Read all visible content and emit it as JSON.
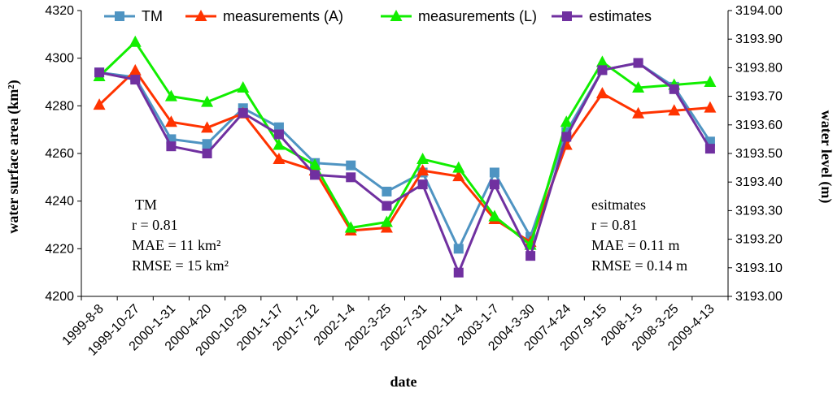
{
  "chart_data": {
    "type": "line",
    "categories": [
      "1999-8-8",
      "1999-10-27",
      "2000-1-31",
      "2000-4-20",
      "2000-10-29",
      "2001-1-17",
      "2001-7-12",
      "2002-1-4",
      "2002-3-25",
      "2002-7-31",
      "2002-11-4",
      "2003-1-7",
      "2004-3-30",
      "2007-4-24",
      "2007-9-15",
      "2008-1-5",
      "2008-3-25",
      "2009-4-13"
    ],
    "series": [
      {
        "name": "TM",
        "axis": "left",
        "color": "#4f94c2",
        "marker": "square",
        "values": [
          4294,
          4292,
          4266,
          4264,
          4279,
          4271,
          4256,
          4255,
          4244,
          4252,
          4220,
          4252,
          4225,
          4269,
          4295,
          4298,
          4288,
          4265
        ]
      },
      {
        "name": "measurements (A)",
        "axis": "right",
        "color": "#ff3300",
        "marker": "triangle",
        "values": [
          3193.67,
          3193.79,
          3193.61,
          3193.59,
          3193.64,
          3193.48,
          3193.44,
          3193.23,
          3193.24,
          3193.44,
          3193.42,
          3193.27,
          3193.19,
          3193.53,
          3193.71,
          3193.64,
          3193.65,
          3193.66
        ]
      },
      {
        "name": "measurements (L)",
        "axis": "right",
        "color": "#11ee00",
        "marker": "triangle",
        "values": [
          3193.77,
          3193.89,
          3193.7,
          3193.68,
          3193.73,
          3193.53,
          3193.46,
          3193.24,
          3193.26,
          3193.48,
          3193.45,
          3193.28,
          3193.18,
          3193.61,
          3193.82,
          3193.73,
          3193.74,
          3193.75
        ]
      },
      {
        "name": "estimates",
        "axis": "left",
        "color": "#7030a0",
        "marker": "square",
        "values": [
          4294,
          4291,
          4263,
          4260,
          4277,
          4268,
          4251,
          4250,
          4238,
          4247,
          4210,
          4247,
          4217,
          4267,
          4295,
          4298,
          4287,
          4262
        ]
      }
    ],
    "left_axis": {
      "label": "water surface area (km²)",
      "ylim": [
        4200,
        4320
      ],
      "ticks": [
        "4200",
        "4220",
        "4240",
        "4260",
        "4280",
        "4300",
        "4320"
      ]
    },
    "right_axis": {
      "label": "water level (m)",
      "ylim": [
        3193.0,
        3194.0
      ],
      "ticks": [
        "3193.00",
        "3193.10",
        "3193.20",
        "3193.30",
        "3193.40",
        "3193.50",
        "3193.60",
        "3193.70",
        "3193.80",
        "3193.90",
        "3194.00"
      ]
    },
    "xlabel": "date",
    "grid": false,
    "legend_position": "top",
    "annotations": {
      "tm": [
        "TM",
        "r = 0.81",
        "MAE = 11 km²",
        "RMSE = 15 km²"
      ],
      "estimates": [
        "esitmates",
        "r = 0.81",
        "MAE = 0.11 m",
        "RMSE = 0.14 m"
      ]
    }
  }
}
